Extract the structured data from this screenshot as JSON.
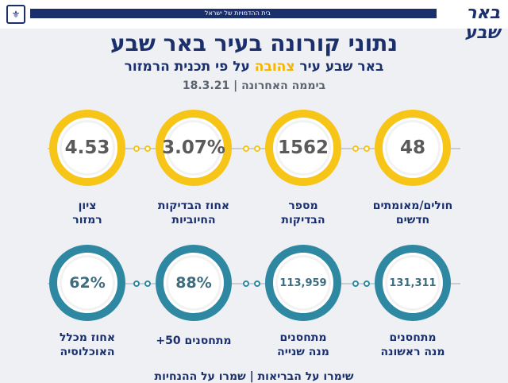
{
  "header": {
    "strip_text": "בית ההדמויות של ישראל",
    "logo_text": "באר שבע",
    "seal_icon": "municipal-seal-icon"
  },
  "title": "נתוני קורונה בעיר באר שבע",
  "subtitle": {
    "before": "באר שבע עיר ",
    "highlight": "צהובה",
    "after": " על פי תכנית הרמזור"
  },
  "date_line": "ביממה האחרונה | 18.3.21",
  "colors": {
    "yellow": "#f7c517",
    "blue": "#2e88a2",
    "navy": "#1b2f6d"
  },
  "top_stats": [
    {
      "value": "48",
      "label1": "חולים/מאומתים",
      "label2": "חדשים"
    },
    {
      "value": "1562",
      "label1": "מספר",
      "label2": "הבדיקות"
    },
    {
      "value": "3.07%",
      "label1": "אחוז הבדיקות",
      "label2": "החיוביות"
    },
    {
      "value": "4.53",
      "label1": "ציון",
      "label2": "רמזור"
    }
  ],
  "bottom_stats": [
    {
      "value": "131,311",
      "label1": "מתחסנים",
      "label2": "מנה ראשונה"
    },
    {
      "value": "113,959",
      "label1": "מתחסנים",
      "label2": "מנה שנייה"
    },
    {
      "value": "88%",
      "label1": "מתחסנים 50+",
      "label2": ""
    },
    {
      "value": "62%",
      "label1": "אחוז מכלל",
      "label2": "האוכלוסיה"
    }
  ],
  "footer": "שימרו על הבריאות | שמרו על ההנחיות"
}
